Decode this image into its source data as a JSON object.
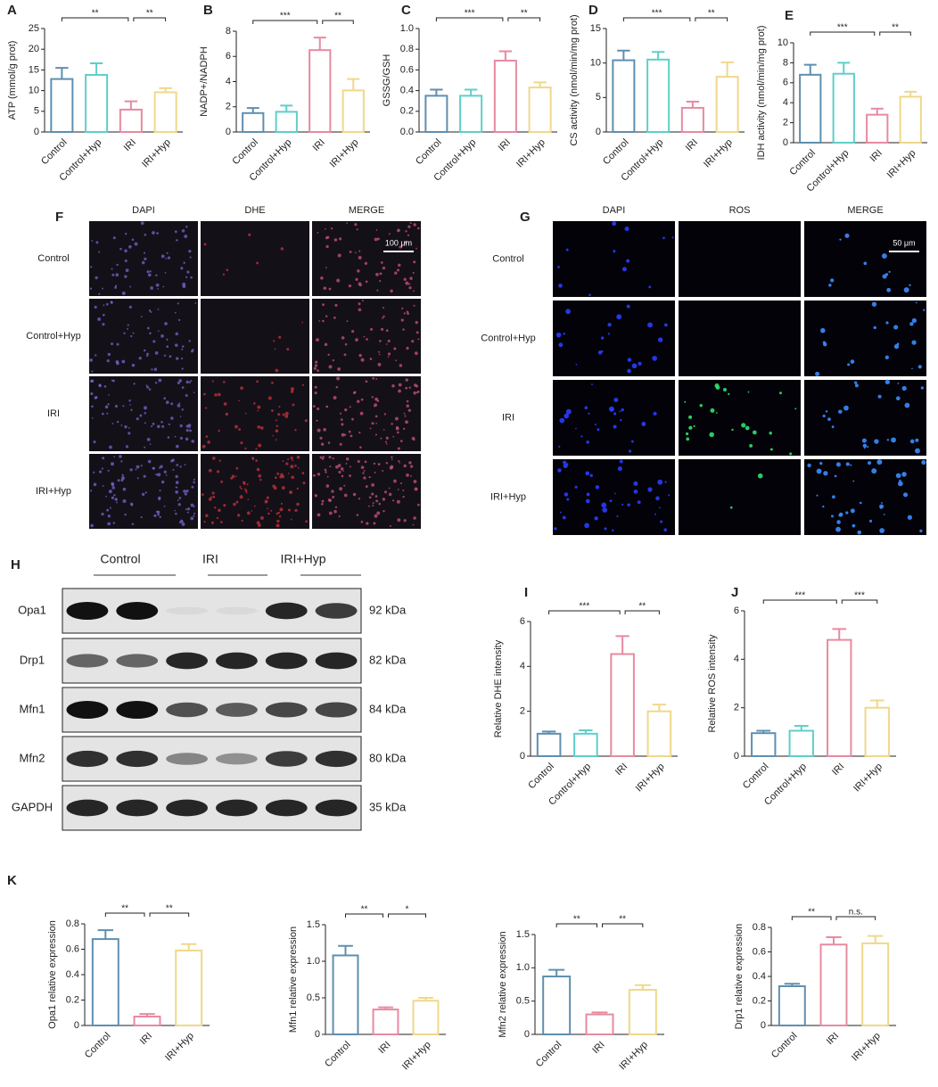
{
  "chart_data": [
    {
      "type": "bar",
      "panel": "A",
      "ylabel": "ATP (mmol/g prot)",
      "categories": [
        "Control",
        "Control+Hyp",
        "IRI",
        "IRI+Hyp"
      ],
      "values": [
        12.8,
        13.8,
        5.4,
        9.6
      ],
      "errors": [
        2.7,
        2.8,
        2.0,
        1.0
      ],
      "colors": [
        "#5f8fb0",
        "#5fcfc8",
        "#e88aa0",
        "#f0d88a"
      ],
      "ylim": [
        0,
        25
      ],
      "yticks": [
        0,
        5,
        10,
        15,
        20,
        25
      ],
      "comparisons": [
        {
          "between": [
            "Control",
            "IRI"
          ],
          "label": "**"
        },
        {
          "between": [
            "IRI",
            "IRI+Hyp"
          ],
          "label": "**"
        }
      ]
    },
    {
      "type": "bar",
      "panel": "B",
      "ylabel": "NADP+/NADPH",
      "categories": [
        "Control",
        "Control+Hyp",
        "IRI",
        "IRI+Hyp"
      ],
      "values": [
        1.5,
        1.6,
        6.5,
        3.3
      ],
      "errors": [
        0.4,
        0.5,
        1.0,
        0.9
      ],
      "colors": [
        "#5f8fb0",
        "#5fcfc8",
        "#e88aa0",
        "#f0d88a"
      ],
      "ylim": [
        0,
        8
      ],
      "yticks": [
        0,
        2,
        4,
        6,
        8
      ],
      "comparisons": [
        {
          "between": [
            "Control",
            "IRI"
          ],
          "label": "***"
        },
        {
          "between": [
            "IRI",
            "IRI+Hyp"
          ],
          "label": "**"
        }
      ]
    },
    {
      "type": "bar",
      "panel": "C",
      "ylabel": "GSSG/GSH",
      "categories": [
        "Control",
        "Control+Hyp",
        "IRI",
        "IRI+Hyp"
      ],
      "values": [
        0.35,
        0.35,
        0.69,
        0.43
      ],
      "errors": [
        0.06,
        0.06,
        0.09,
        0.05
      ],
      "colors": [
        "#5f8fb0",
        "#5fcfc8",
        "#e88aa0",
        "#f0d88a"
      ],
      "ylim": [
        0,
        1
      ],
      "yticks": [
        {
          "value": 0,
          "label": "0.0"
        },
        0.2,
        0.4,
        0.6,
        0.8,
        {
          "value": 1,
          "label": "1.0"
        }
      ],
      "comparisons": [
        {
          "between": [
            "Control",
            "IRI"
          ],
          "label": "***"
        },
        {
          "between": [
            "IRI",
            "IRI+Hyp"
          ],
          "label": "**"
        }
      ]
    },
    {
      "type": "bar",
      "panel": "D",
      "ylabel": "CS activity (nmol/min/mg prot)",
      "categories": [
        "Control",
        "Control+Hyp",
        "IRI",
        "IRI+Hyp"
      ],
      "values": [
        10.4,
        10.5,
        3.5,
        8.0
      ],
      "errors": [
        1.4,
        1.1,
        0.9,
        2.1
      ],
      "colors": [
        "#5f8fb0",
        "#5fcfc8",
        "#e88aa0",
        "#f0d88a"
      ],
      "ylim": [
        0,
        15
      ],
      "yticks": [
        0,
        5,
        10,
        15
      ],
      "comparisons": [
        {
          "between": [
            "Control",
            "IRI"
          ],
          "label": "***"
        },
        {
          "between": [
            "IRI",
            "IRI+Hyp"
          ],
          "label": "**"
        }
      ]
    },
    {
      "type": "bar",
      "panel": "E",
      "ylabel": "IDH activity (nmol/min/mg prot)",
      "categories": [
        "Control",
        "Control+Hyp",
        "IRI",
        "IRI+Hyp"
      ],
      "values": [
        6.8,
        6.9,
        2.8,
        4.6
      ],
      "errors": [
        1.0,
        1.1,
        0.6,
        0.5
      ],
      "colors": [
        "#5f8fb0",
        "#5fcfc8",
        "#e88aa0",
        "#f0d88a"
      ],
      "ylim": [
        0,
        10
      ],
      "yticks": [
        0,
        2,
        4,
        6,
        8,
        10
      ],
      "comparisons": [
        {
          "between": [
            "Control",
            "IRI"
          ],
          "label": "***"
        },
        {
          "between": [
            "IRI",
            "IRI+Hyp"
          ],
          "label": "**"
        }
      ]
    },
    {
      "type": "bar",
      "panel": "I",
      "ylabel": "Relative DHE intensity",
      "categories": [
        "Control",
        "Control+Hyp",
        "IRI",
        "IRI+Hyp"
      ],
      "values": [
        1.0,
        1.0,
        4.55,
        2.0
      ],
      "errors": [
        0.1,
        0.15,
        0.8,
        0.3
      ],
      "colors": [
        "#5f8fb0",
        "#5fcfc8",
        "#e88aa0",
        "#f0d88a"
      ],
      "ylim": [
        0,
        6
      ],
      "yticks": [
        0,
        2,
        4,
        6
      ],
      "comparisons": [
        {
          "between": [
            "Control",
            "IRI"
          ],
          "label": "***"
        },
        {
          "between": [
            "IRI",
            "IRI+Hyp"
          ],
          "label": "**"
        }
      ]
    },
    {
      "type": "bar",
      "panel": "J",
      "ylabel": "Relative ROS intensity",
      "categories": [
        "Control",
        "Control+Hyp",
        "IRI",
        "IRI+Hyp"
      ],
      "values": [
        0.95,
        1.05,
        4.8,
        2.0
      ],
      "errors": [
        0.1,
        0.2,
        0.45,
        0.3
      ],
      "colors": [
        "#5f8fb0",
        "#5fcfc8",
        "#e88aa0",
        "#f0d88a"
      ],
      "ylim": [
        0,
        6
      ],
      "yticks": [
        0,
        2,
        4,
        6
      ],
      "comparisons": [
        {
          "between": [
            "Control",
            "IRI"
          ],
          "label": "***"
        },
        {
          "between": [
            "IRI",
            "IRI+Hyp"
          ],
          "label": "***"
        }
      ]
    },
    {
      "type": "bar",
      "panel": "K",
      "ylabel": "Opa1 relative expression",
      "categories": [
        "Control",
        "IRI",
        "IRI+Hyp"
      ],
      "values": [
        0.68,
        0.07,
        0.59
      ],
      "errors": [
        0.07,
        0.02,
        0.05
      ],
      "colors": [
        "#5f8fb0",
        "#e88aa0",
        "#f0d88a"
      ],
      "ylim": [
        0,
        0.8
      ],
      "yticks": [
        0,
        0.2,
        0.4,
        0.6,
        0.8
      ],
      "comparisons": [
        {
          "between": [
            "Control",
            "IRI"
          ],
          "label": "**"
        },
        {
          "between": [
            "IRI",
            "IRI+Hyp"
          ],
          "label": "**"
        }
      ]
    },
    {
      "type": "bar",
      "ylabel": "Mfn1 relative expression",
      "categories": [
        "Control",
        "IRI",
        "IRI+Hyp"
      ],
      "values": [
        1.08,
        0.34,
        0.46
      ],
      "errors": [
        0.13,
        0.03,
        0.04
      ],
      "colors": [
        "#5f8fb0",
        "#e88aa0",
        "#f0d88a"
      ],
      "ylim": [
        0,
        1.5
      ],
      "yticks": [
        0,
        0.5,
        {
          "value": 1,
          "label": "1.0"
        },
        1.5
      ],
      "comparisons": [
        {
          "between": [
            "Control",
            "IRI"
          ],
          "label": "**"
        },
        {
          "between": [
            "IRI",
            "IRI+Hyp"
          ],
          "label": "*"
        }
      ]
    },
    {
      "type": "bar",
      "ylabel": "Mfn2 relative expression",
      "categories": [
        "Control",
        "IRI",
        "IRI+Hyp"
      ],
      "values": [
        0.87,
        0.3,
        0.67
      ],
      "errors": [
        0.1,
        0.03,
        0.07
      ],
      "colors": [
        "#5f8fb0",
        "#e88aa0",
        "#f0d88a"
      ],
      "ylim": [
        0,
        1.5
      ],
      "yticks": [
        0,
        0.5,
        {
          "value": 1,
          "label": "1.0"
        },
        1.5
      ],
      "comparisons": [
        {
          "between": [
            "Control",
            "IRI"
          ],
          "label": "**"
        },
        {
          "between": [
            "IRI",
            "IRI+Hyp"
          ],
          "label": "**"
        }
      ]
    },
    {
      "type": "bar",
      "ylabel": "Drp1 relative expression",
      "categories": [
        "Control",
        "IRI",
        "IRI+Hyp"
      ],
      "values": [
        0.32,
        0.66,
        0.67
      ],
      "errors": [
        0.02,
        0.06,
        0.06
      ],
      "colors": [
        "#5f8fb0",
        "#e88aa0",
        "#f0d88a"
      ],
      "ylim": [
        0,
        0.8
      ],
      "yticks": [
        0,
        0.2,
        0.4,
        0.6,
        0.8
      ],
      "comparisons": [
        {
          "between": [
            "Control",
            "IRI"
          ],
          "label": "**"
        },
        {
          "between": [
            "IRI",
            "IRI+Hyp"
          ],
          "label": "n.s."
        }
      ]
    }
  ],
  "images": [
    {
      "panel": "F",
      "columns": [
        "DAPI",
        "DHE",
        "MERGE"
      ],
      "rows": [
        "Control",
        "Control+Hyp",
        "IRI",
        "IRI+Hyp"
      ],
      "scale_bar": "100 μm"
    },
    {
      "panel": "G",
      "columns": [
        "DAPI",
        "ROS",
        "MERGE"
      ],
      "rows": [
        "Control",
        "Control+Hyp",
        "IRI",
        "IRI+Hyp"
      ],
      "scale_bar": "50 μm"
    }
  ],
  "blot": {
    "panel": "H",
    "groups": [
      "Control",
      "IRI",
      "IRI+Hyp"
    ],
    "rows": [
      {
        "protein": "Opa1",
        "size": "92 kDa"
      },
      {
        "protein": "Drp1",
        "size": "82 kDa"
      },
      {
        "protein": "Mfn1",
        "size": "84 kDa"
      },
      {
        "protein": "Mfn2",
        "size": "80 kDa"
      },
      {
        "protein": "GAPDH",
        "size": "35 kDa"
      }
    ]
  }
}
